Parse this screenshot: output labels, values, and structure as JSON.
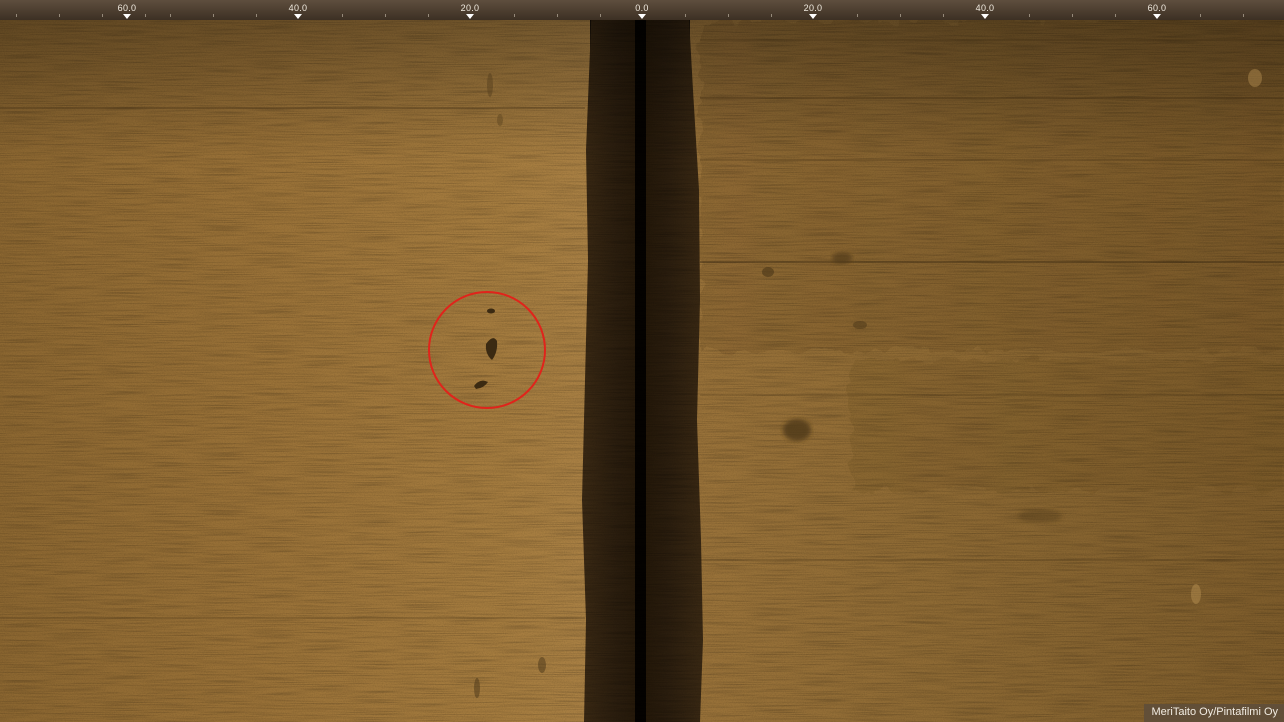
{
  "viewer": {
    "image_semantics": "side-scan sonar seabed image",
    "palette": {
      "seabed_light": "#a57c3f",
      "seabed_mid": "#8e6a34",
      "seabed_dark": "#4a3618",
      "water_column": "#2c1f10",
      "nadir_line": "#050301",
      "highlight_circle": "#e0241b"
    }
  },
  "range_scale": {
    "ticks": [
      {
        "label": "60.0",
        "side": "port"
      },
      {
        "label": "40.0",
        "side": "port"
      },
      {
        "label": "20.0",
        "side": "port"
      },
      {
        "label": "0.0",
        "side": "center"
      },
      {
        "label": "20.0",
        "side": "starboard"
      },
      {
        "label": "40.0",
        "side": "starboard"
      },
      {
        "label": "60.0",
        "side": "starboard"
      }
    ]
  },
  "annotation": {
    "type": "highlight-circle",
    "color": "#e0241b",
    "marks": "small dark objects on seabed"
  },
  "credit": "MeriTaito Oy/Pintafilmi Oy"
}
